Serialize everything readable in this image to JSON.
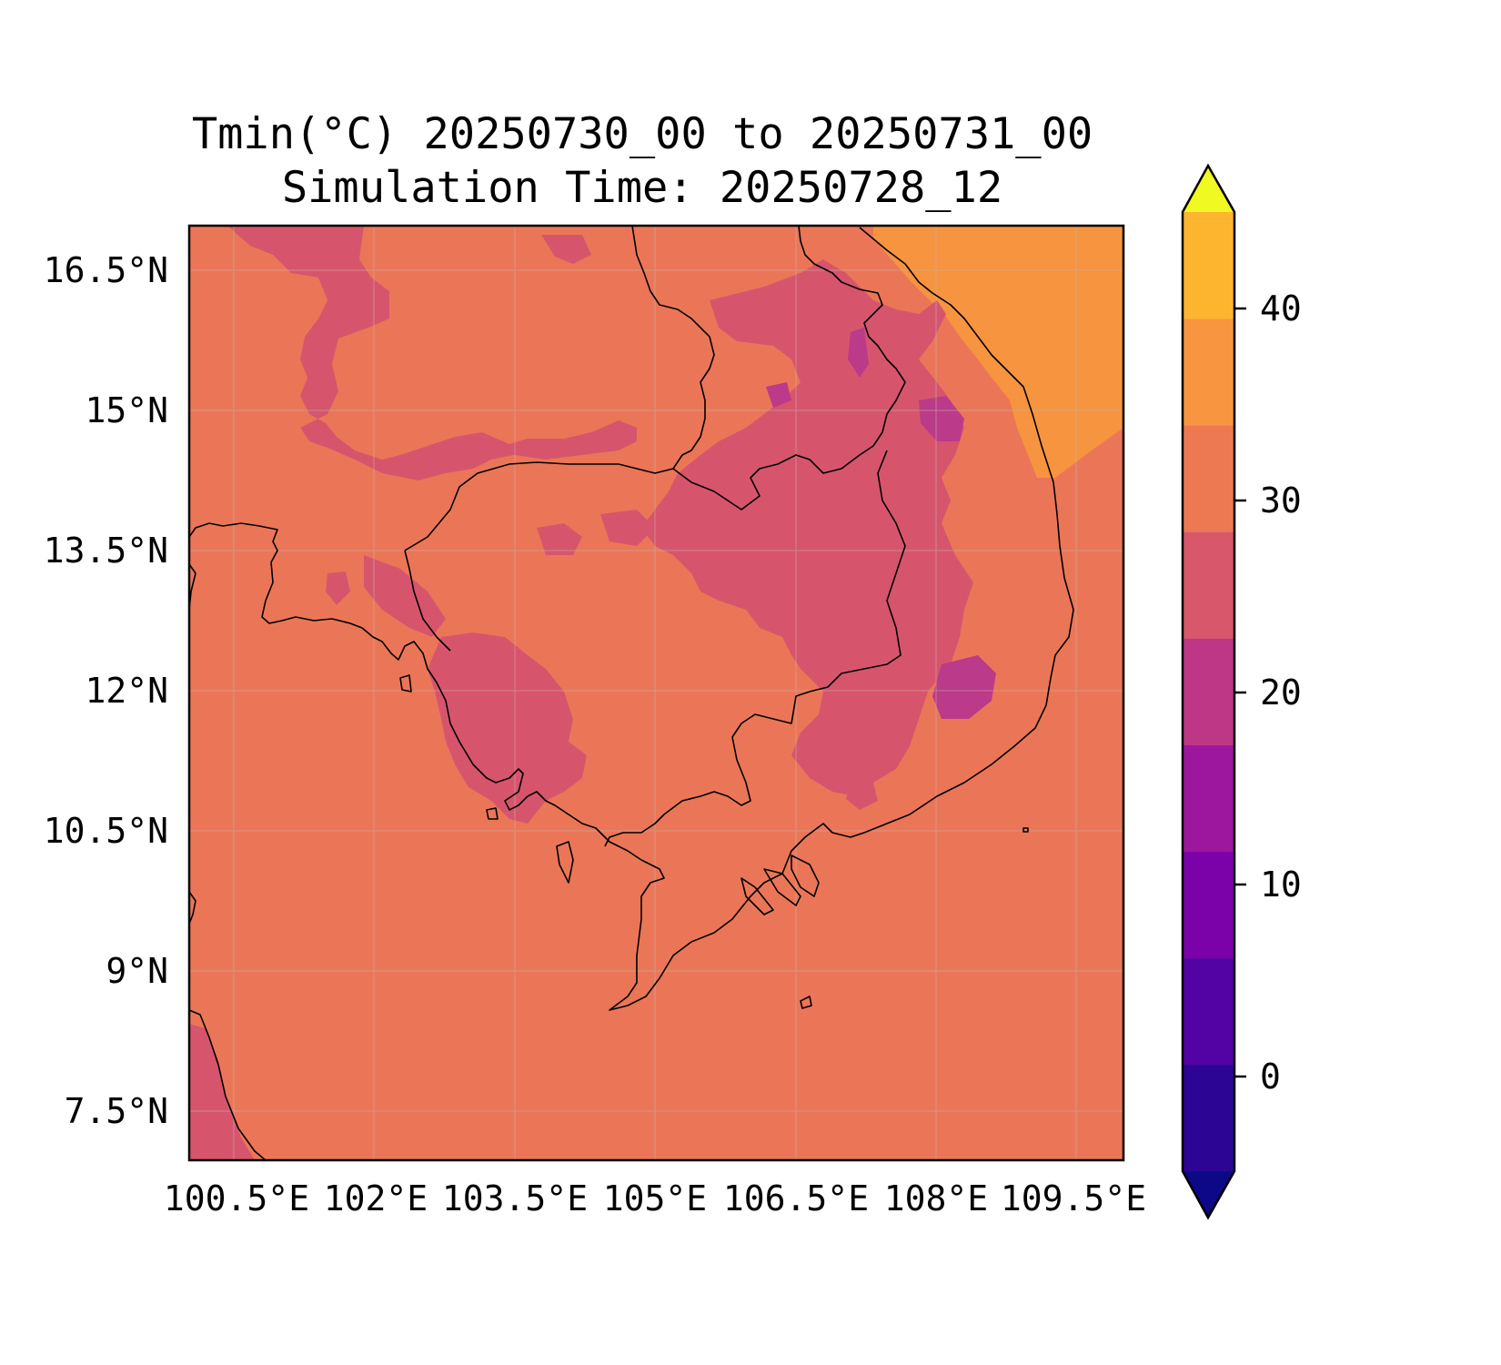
{
  "title": {
    "line1": "Tmin(°C) 20250730_00 to 20250731_00",
    "line2": "Simulation Time: 20250728_12"
  },
  "map": {
    "lat_ticks": [
      "16.5°N",
      "15°N",
      "13.5°N",
      "12°N",
      "10.5°N",
      "9°N",
      "7.5°N"
    ],
    "lon_ticks": [
      "100.5°E",
      "102°E",
      "103.5°E",
      "105°E",
      "106.5°E",
      "108°E",
      "109.5°E"
    ],
    "colors": {
      "background_field": "#eb7657",
      "cooler_field": "#d6556d",
      "coolest_field": "#bb3a89",
      "warm_sea": "#f69440",
      "coastline": "#000000"
    }
  },
  "colorbar": {
    "ticks": [
      "0",
      "10",
      "20",
      "30",
      "40"
    ],
    "band_colors": [
      "#0d0887",
      "#2c0594",
      "#5302a3",
      "#7a02a8",
      "#9c179e",
      "#bd3786",
      "#d8576b",
      "#ed7953",
      "#f89540",
      "#fdb42f",
      "#f0f921"
    ]
  }
}
